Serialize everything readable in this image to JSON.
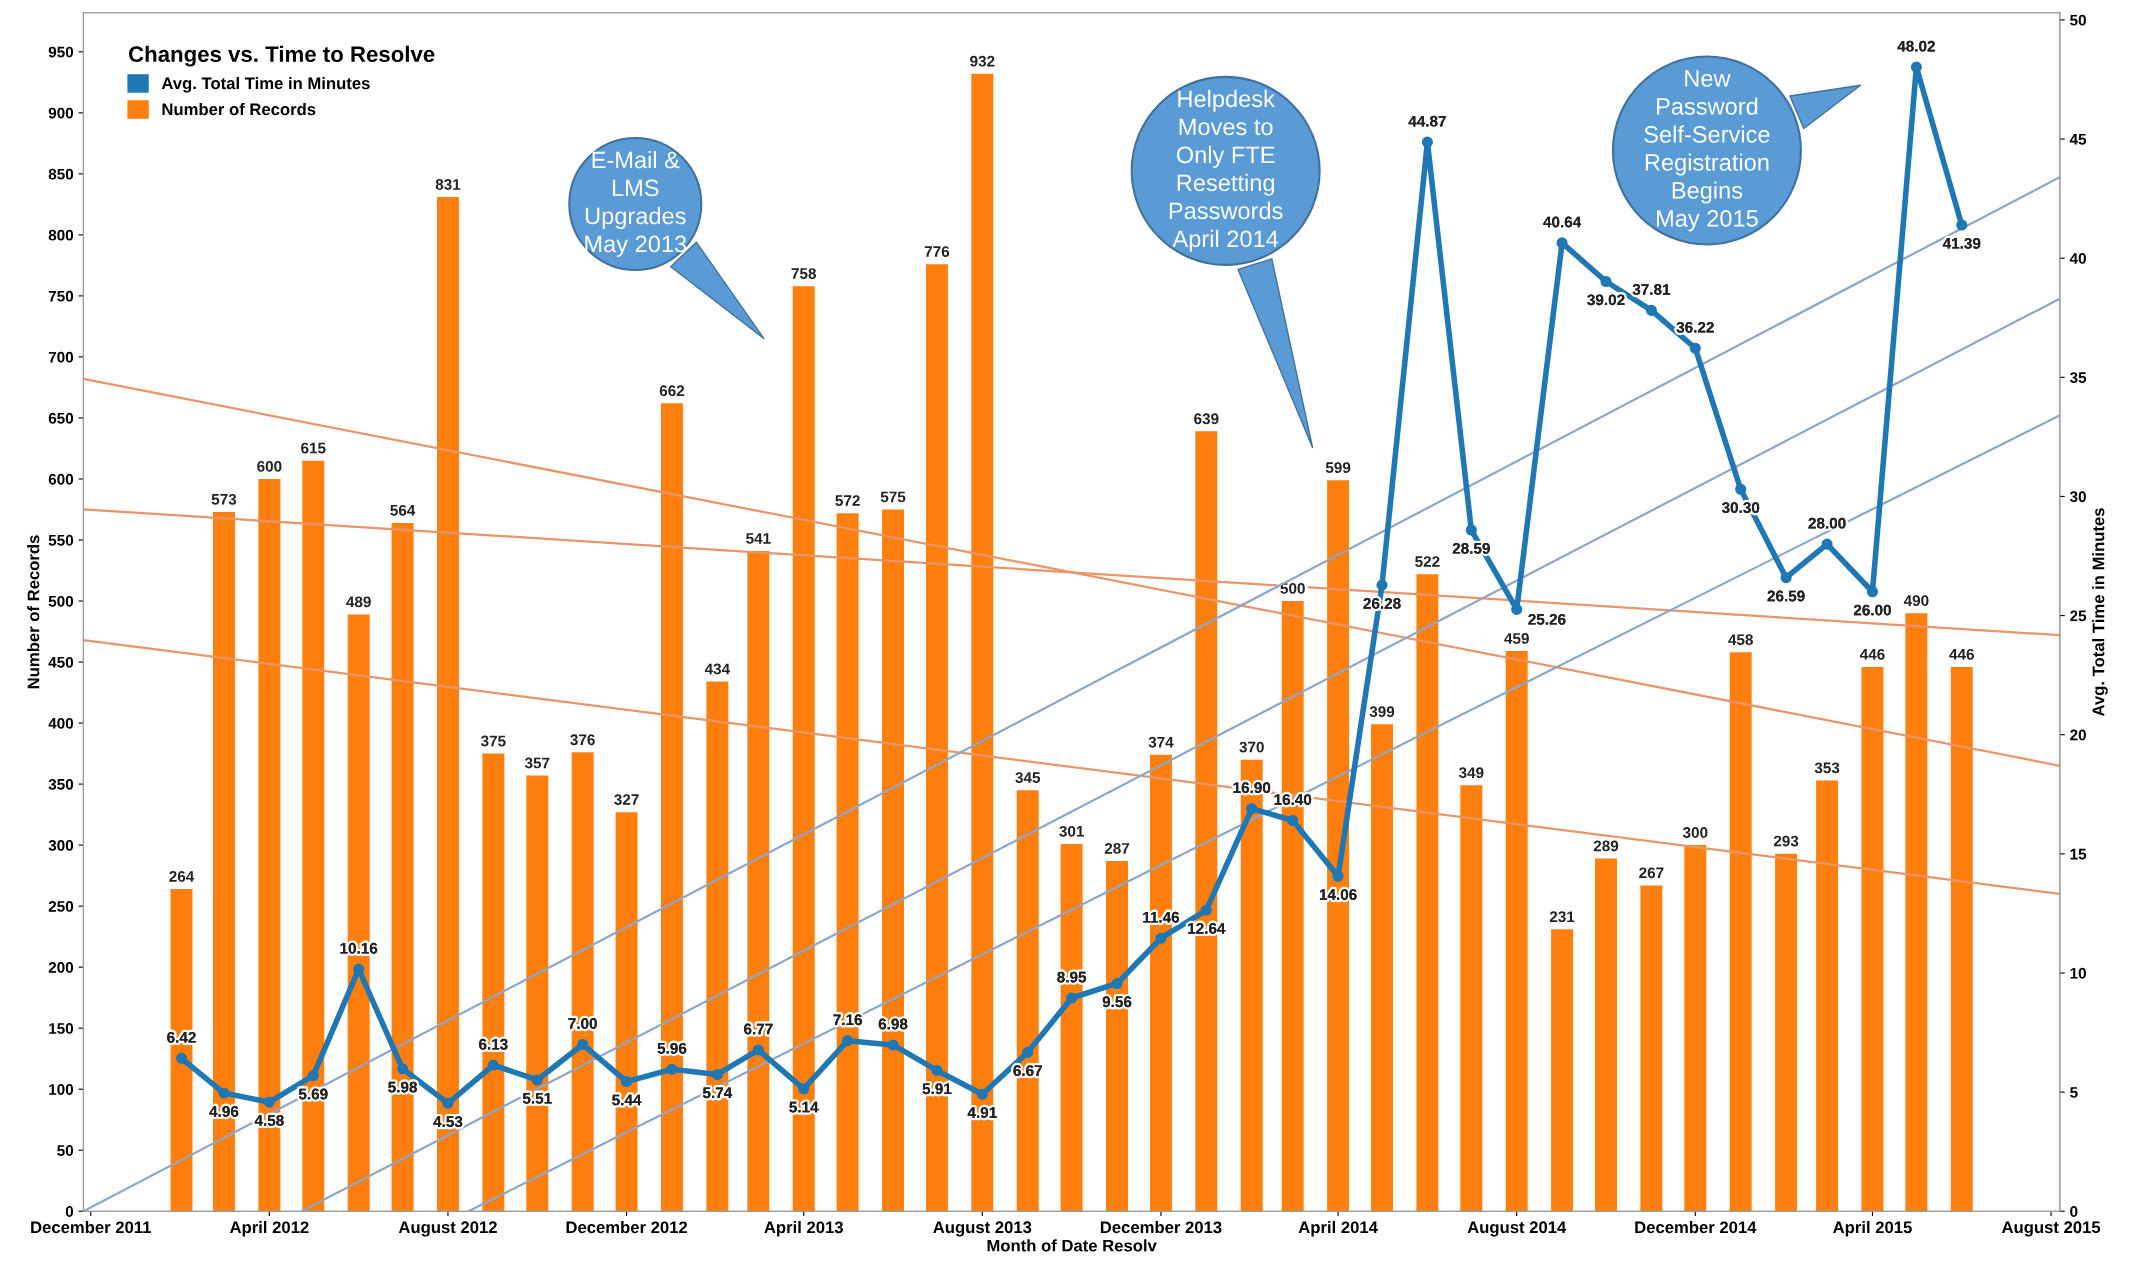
{
  "chart_data": {
    "type": "bar",
    "xlabel": "Month of Date Resolv",
    "ylabel": "Number of Records",
    "y2label": "Avg. Total Time in Minutes",
    "legend_title": "Changes vs. Time to Resolve",
    "legend": "top left",
    "grid": false,
    "annotations": [
      "E-Mail &\nLMS\nUpgrades\nMay 2013",
      "Helpdesk\nMoves to\nOnly FTE\nResetting\nPasswords\nApril 2014",
      "New\nPassword\nSelf-Service\nRegistration\nBegins\nMay 2015"
    ],
    "x": [
      "2012-02",
      "2012-03",
      "2012-04",
      "2012-05",
      "2012-06",
      "2012-07",
      "2012-08",
      "2012-09",
      "2012-10",
      "2012-11",
      "2012-12",
      "2013-01",
      "2013-02",
      "2013-03",
      "2013-04",
      "2013-05",
      "2013-06",
      "2013-07",
      "2013-08",
      "2013-09",
      "2013-10",
      "2013-11",
      "2013-12",
      "2014-01",
      "2014-02",
      "2014-03",
      "2014-04",
      "2014-05",
      "2014-06",
      "2014-07",
      "2014-08",
      "2014-09",
      "2014-10",
      "2014-11",
      "2014-12",
      "2015-01",
      "2015-02",
      "2015-03",
      "2015-04",
      "2015-05",
      "2015-06"
    ],
    "xlim": [
      "2011-11-26",
      "2015-08-07"
    ],
    "xticks": [
      {
        "value": "2011-12",
        "label": "December 2011"
      },
      {
        "value": "2012-04",
        "label": "April 2012"
      },
      {
        "value": "2012-08",
        "label": "August 2012"
      },
      {
        "value": "2012-12",
        "label": "December 2012"
      },
      {
        "value": "2013-04",
        "label": "April 2013"
      },
      {
        "value": "2013-08",
        "label": "August 2013"
      },
      {
        "value": "2013-12",
        "label": "December 2013"
      },
      {
        "value": "2014-04",
        "label": "April 2014"
      },
      {
        "value": "2014-08",
        "label": "August 2014"
      },
      {
        "value": "2014-12",
        "label": "December 2014"
      },
      {
        "value": "2015-04",
        "label": "April 2015"
      },
      {
        "value": "2015-08",
        "label": "August 2015"
      }
    ],
    "ylim": [
      0,
      982
    ],
    "yticks": [
      0,
      50,
      100,
      150,
      200,
      250,
      300,
      350,
      400,
      450,
      500,
      550,
      600,
      650,
      700,
      750,
      800,
      850,
      900,
      950
    ],
    "y2lim": [
      0,
      50.3
    ],
    "y2ticks": [
      0,
      5,
      10,
      15,
      20,
      25,
      30,
      35,
      40,
      45,
      50
    ],
    "series": [
      {
        "name": "Avg. Total Time in Minutes",
        "type": "line",
        "axis": "y2",
        "color": "#1f77b4",
        "marker": "circle",
        "line_style": "solid",
        "values": [
          6.42,
          4.96,
          4.58,
          5.69,
          10.16,
          5.98,
          4.53,
          6.13,
          5.51,
          7.0,
          5.44,
          5.96,
          5.74,
          6.77,
          5.14,
          7.16,
          6.98,
          5.91,
          4.91,
          6.67,
          8.95,
          9.56,
          11.46,
          12.64,
          16.9,
          16.4,
          14.06,
          26.28,
          44.87,
          28.59,
          25.26,
          40.64,
          39.02,
          37.81,
          36.22,
          30.3,
          26.59,
          28.0,
          26.0,
          48.02,
          41.39
        ],
        "value_labels": [
          "6.42",
          "4.96",
          "4.58",
          "5.69",
          "10.16",
          "5.98",
          "4.53",
          "6.13",
          "5.51",
          "7.00",
          "5.44",
          "5.96",
          "5.74",
          "6.77",
          "5.14",
          "7.16",
          "6.98",
          "5.91",
          "4.91",
          "6.67",
          "8.95",
          "9.56",
          "11.46",
          "12.64",
          "16.90",
          "16.40",
          "14.06",
          "26.28",
          "44.87",
          "28.59",
          "25.26",
          "40.64",
          "39.02",
          "37.81",
          "36.22",
          "30.30",
          "26.59",
          "28.00",
          "26.00",
          "48.02",
          "41.39"
        ]
      },
      {
        "name": "Number of Records",
        "axis": "y",
        "color": "#ff7f0e",
        "data_labels": true,
        "values": [
          264,
          573,
          600,
          615,
          489,
          564,
          831,
          375,
          357,
          376,
          327,
          662,
          434,
          541,
          758,
          572,
          575,
          776,
          932,
          345,
          301,
          287,
          374,
          639,
          370,
          500,
          599,
          399,
          522,
          349,
          459,
          231,
          289,
          267,
          300,
          458,
          293,
          353,
          446,
          490,
          446
        ]
      },
      {
        "type": "line",
        "axis": "y",
        "color": "#e8956a",
        "line_style": "solid",
        "x": [
          "2011-11-26",
          "2015-08-07"
        ],
        "values": [
          682,
          365
        ]
      },
      {
        "type": "line",
        "axis": "y",
        "color": "#e8956a",
        "line_style": "solid",
        "x": [
          "2011-11-26",
          "2015-08-07"
        ],
        "values": [
          575,
          472
        ]
      },
      {
        "type": "line",
        "axis": "y",
        "color": "#e8956a",
        "line_style": "solid",
        "x": [
          "2011-11-26",
          "2015-08-07"
        ],
        "values": [
          468,
          260
        ]
      },
      {
        "type": "line",
        "axis": "y2",
        "color": "#8fa6c8",
        "line_style": "solid",
        "x": [
          "2011-11-26",
          "2015-08-07"
        ],
        "values": [
          0,
          43.4
        ]
      },
      {
        "type": "line",
        "axis": "y2",
        "color": "#8fa6c8",
        "line_style": "solid",
        "x": [
          "2012-04-23",
          "2015-08-07"
        ],
        "values": [
          0,
          38.3
        ]
      },
      {
        "type": "line",
        "axis": "y2",
        "color": "#8fa6c8",
        "line_style": "solid",
        "x": [
          "2012-08-15",
          "2015-08-07"
        ],
        "values": [
          0,
          33.4
        ]
      }
    ]
  }
}
